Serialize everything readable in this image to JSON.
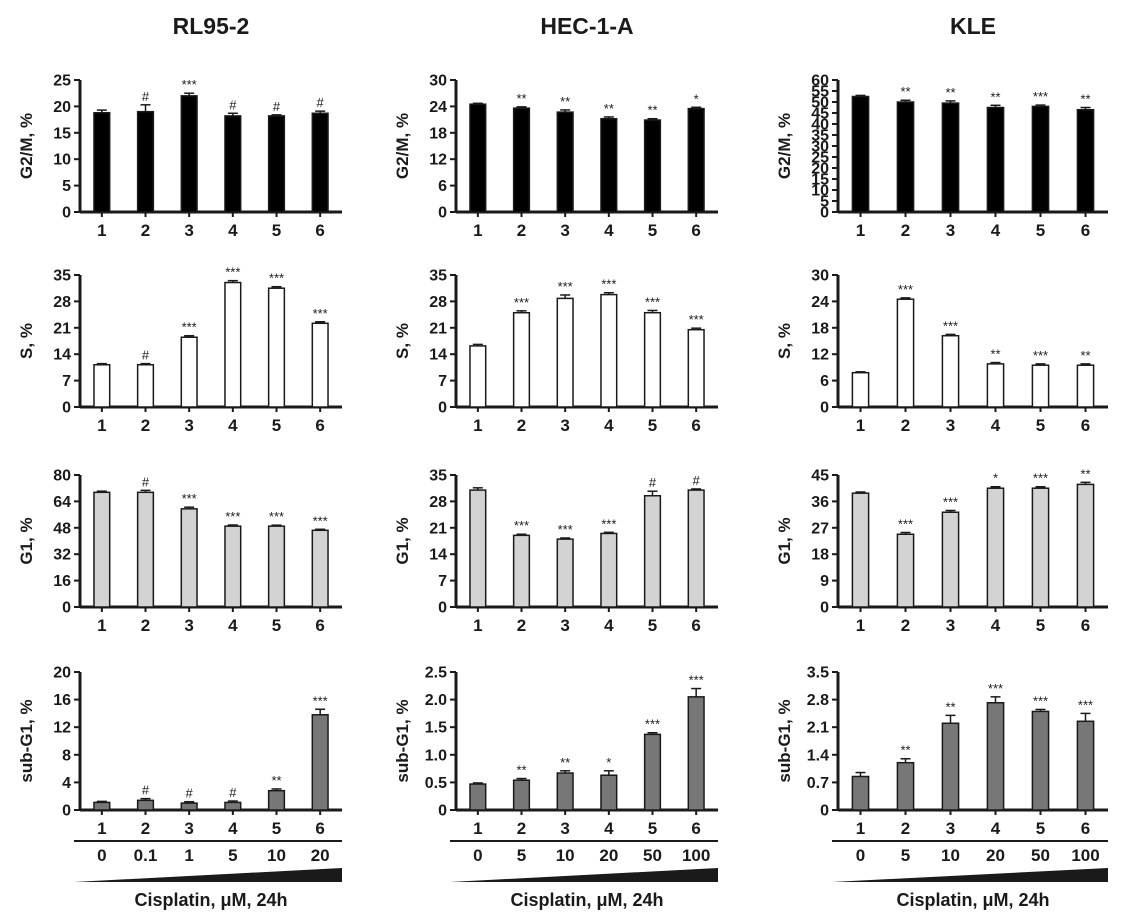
{
  "colors": {
    "G2/M": "#000000",
    "S": "#ffffff",
    "G1": "#d3d3d3",
    "sub-G1": "#777777",
    "axis": "#1a1a1a"
  },
  "chart_data": [
    {
      "type": "bar",
      "cell_line": "RL95-2",
      "column_title": "RL95-2",
      "x_title": "Cisplatin, μM, 24h",
      "doses": [
        "0",
        "0.1",
        "1",
        "5",
        "10",
        "20"
      ],
      "panels": [
        {
          "phase": "G2/M",
          "ylabel": "G2/M, %",
          "categories": [
            "1",
            "2",
            "3",
            "4",
            "5",
            "6"
          ],
          "values": [
            18.8,
            19.0,
            22.0,
            18.2,
            18.2,
            18.7
          ],
          "errors": [
            0.5,
            1.3,
            0.5,
            0.5,
            0.2,
            0.4
          ],
          "significance": [
            "",
            "#",
            "***",
            "#",
            "#",
            "#"
          ],
          "ylim": [
            0,
            25
          ],
          "yticks": [
            "0",
            "5",
            "10",
            "15",
            "20",
            "25"
          ]
        },
        {
          "phase": "S",
          "ylabel": "S, %",
          "categories": [
            "1",
            "2",
            "3",
            "4",
            "5",
            "6"
          ],
          "values": [
            11.2,
            11.2,
            18.5,
            33.0,
            31.5,
            22.2
          ],
          "errors": [
            0.3,
            0.3,
            0.4,
            0.5,
            0.4,
            0.4
          ],
          "significance": [
            "",
            "#",
            "***",
            "***",
            "***",
            "***"
          ],
          "ylim": [
            0,
            35
          ],
          "yticks": [
            "0",
            "7",
            "14",
            "21",
            "28",
            "35"
          ]
        },
        {
          "phase": "G1",
          "ylabel": "G1, %",
          "categories": [
            "1",
            "2",
            "3",
            "4",
            "5",
            "6"
          ],
          "values": [
            69.5,
            69.5,
            59.5,
            49.0,
            49.0,
            46.5
          ],
          "errors": [
            0.7,
            1.2,
            1.0,
            0.7,
            0.6,
            0.6
          ],
          "significance": [
            "",
            "#",
            "***",
            "***",
            "***",
            "***"
          ],
          "ylim": [
            0,
            80
          ],
          "yticks": [
            "0",
            "16",
            "32",
            "48",
            "64",
            "80"
          ]
        },
        {
          "phase": "sub-G1",
          "ylabel": "sub-G1, %",
          "categories": [
            "1",
            "2",
            "3",
            "4",
            "5",
            "6"
          ],
          "values": [
            1.1,
            1.4,
            1.0,
            1.1,
            2.8,
            13.8
          ],
          "errors": [
            0.15,
            0.25,
            0.2,
            0.2,
            0.25,
            0.8
          ],
          "significance": [
            "",
            "#",
            "#",
            "#",
            "**",
            "***"
          ],
          "ylim": [
            0,
            20
          ],
          "yticks": [
            "0",
            "4",
            "8",
            "12",
            "16",
            "20"
          ]
        }
      ]
    },
    {
      "type": "bar",
      "cell_line": "HEC-1-A",
      "column_title": "HEC-1-A",
      "x_title": "Cisplatin, μM, 24h",
      "doses": [
        "0",
        "5",
        "10",
        "20",
        "50",
        "100"
      ],
      "panels": [
        {
          "phase": "G2/M",
          "ylabel": "G2/M, %",
          "categories": [
            "1",
            "2",
            "3",
            "4",
            "5",
            "6"
          ],
          "values": [
            24.5,
            23.6,
            22.7,
            21.2,
            20.9,
            23.5
          ],
          "errors": [
            0.2,
            0.3,
            0.5,
            0.4,
            0.3,
            0.3
          ],
          "significance": [
            "",
            "**",
            "**",
            "**",
            "**",
            "*"
          ],
          "ylim": [
            0,
            30
          ],
          "yticks": [
            "0",
            "6",
            "12",
            "18",
            "24",
            "30"
          ]
        },
        {
          "phase": "S",
          "ylabel": "S, %",
          "categories": [
            "1",
            "2",
            "3",
            "4",
            "5",
            "6"
          ],
          "values": [
            16.2,
            25.0,
            28.8,
            29.8,
            25.0,
            20.5
          ],
          "errors": [
            0.4,
            0.5,
            0.9,
            0.5,
            0.6,
            0.4
          ],
          "significance": [
            "",
            "***",
            "***",
            "***",
            "***",
            "***"
          ],
          "ylim": [
            0,
            35
          ],
          "yticks": [
            "0",
            "7",
            "14",
            "21",
            "28",
            "35"
          ]
        },
        {
          "phase": "G1",
          "ylabel": "G1, %",
          "categories": [
            "1",
            "2",
            "3",
            "4",
            "5",
            "6"
          ],
          "values": [
            31.0,
            19.0,
            18.0,
            19.5,
            29.5,
            31.0
          ],
          "errors": [
            0.6,
            0.3,
            0.3,
            0.3,
            1.2,
            0.3
          ],
          "significance": [
            "",
            "***",
            "***",
            "***",
            "#",
            "#"
          ],
          "ylim": [
            0,
            35
          ],
          "yticks": [
            "0",
            "7",
            "14",
            "21",
            "28",
            "35"
          ]
        },
        {
          "phase": "sub-G1",
          "ylabel": "sub-G1, %",
          "categories": [
            "1",
            "2",
            "3",
            "4",
            "5",
            "6"
          ],
          "values": [
            0.47,
            0.54,
            0.67,
            0.63,
            1.37,
            2.05
          ],
          "errors": [
            0.02,
            0.03,
            0.04,
            0.08,
            0.03,
            0.15
          ],
          "significance": [
            "",
            "**",
            "**",
            "*",
            "***",
            "***"
          ],
          "ylim": [
            0,
            2.5
          ],
          "yticks": [
            "0",
            "0.5",
            "1.0",
            "1.5",
            "2.0",
            "2.5"
          ]
        }
      ]
    },
    {
      "type": "bar",
      "cell_line": "KLE",
      "column_title": "KLE",
      "x_title": "Cisplatin, μM, 24h",
      "doses": [
        "0",
        "5",
        "10",
        "20",
        "50",
        "100"
      ],
      "panels": [
        {
          "phase": "G2/M",
          "ylabel": "G2/M, %",
          "categories": [
            "1",
            "2",
            "3",
            "4",
            "5",
            "6"
          ],
          "values": [
            52.5,
            50.0,
            49.5,
            47.5,
            48.0,
            46.5
          ],
          "errors": [
            0.5,
            0.8,
            1.0,
            1.0,
            0.6,
            1.0
          ],
          "significance": [
            "",
            "**",
            "**",
            "**",
            "***",
            "**"
          ],
          "ylim": [
            0,
            60
          ],
          "yticks": [
            "0",
            "5",
            "10",
            "15",
            "20",
            "25",
            "30",
            "35",
            "40",
            "45",
            "50",
            "55",
            "60"
          ]
        },
        {
          "phase": "S",
          "ylabel": "S, %",
          "categories": [
            "1",
            "2",
            "3",
            "4",
            "5",
            "6"
          ],
          "values": [
            7.8,
            24.5,
            16.2,
            9.8,
            9.5,
            9.5
          ],
          "errors": [
            0.2,
            0.3,
            0.3,
            0.3,
            0.3,
            0.3
          ],
          "significance": [
            "",
            "***",
            "***",
            "**",
            "***",
            "**"
          ],
          "ylim": [
            0,
            30
          ],
          "yticks": [
            "0",
            "6",
            "12",
            "18",
            "24",
            "30"
          ]
        },
        {
          "phase": "G1",
          "ylabel": "G1, %",
          "categories": [
            "1",
            "2",
            "3",
            "4",
            "5",
            "6"
          ],
          "values": [
            38.8,
            24.8,
            32.3,
            40.5,
            40.5,
            41.8
          ],
          "errors": [
            0.4,
            0.6,
            0.6,
            0.5,
            0.5,
            0.7
          ],
          "significance": [
            "",
            "***",
            "***",
            "*",
            "***",
            "**"
          ],
          "ylim": [
            0,
            45
          ],
          "yticks": [
            "0",
            "9",
            "18",
            "27",
            "36",
            "45"
          ]
        },
        {
          "phase": "sub-G1",
          "ylabel": "sub-G1, %",
          "categories": [
            "1",
            "2",
            "3",
            "4",
            "5",
            "6"
          ],
          "values": [
            0.85,
            1.2,
            2.2,
            2.72,
            2.5,
            2.25
          ],
          "errors": [
            0.1,
            0.1,
            0.2,
            0.15,
            0.05,
            0.2
          ],
          "significance": [
            "",
            "**",
            "**",
            "***",
            "***",
            "***"
          ],
          "ylim": [
            0,
            3.5
          ],
          "yticks": [
            "0",
            "0.7",
            "1.4",
            "2.1",
            "2.8",
            "3.5"
          ]
        }
      ]
    }
  ]
}
